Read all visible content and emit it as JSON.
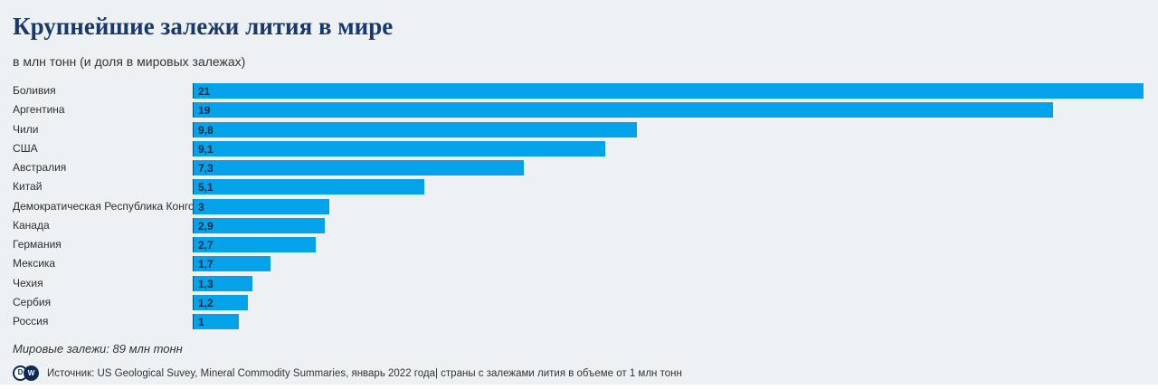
{
  "header": {
    "title": "Крупнейшие залежи лития в мире",
    "subtitle": "в млн тонн (и доля в мировых залежах)"
  },
  "chart_data": {
    "type": "bar",
    "orientation": "horizontal",
    "title": "Крупнейшие залежи лития в мире",
    "subtitle": "в млн тонн (и доля в мировых залежах)",
    "categories": [
      "Боливия",
      "Аргентина",
      "Чили",
      "США",
      "Австралия",
      "Китай",
      "Демократическая Республика Конго",
      "Канада",
      "Германия",
      "Мексика",
      "Чехия",
      "Сербия",
      "Россия"
    ],
    "values": [
      21,
      19,
      9.8,
      9.1,
      7.3,
      5.1,
      3,
      2.9,
      2.7,
      1.7,
      1.3,
      1.2,
      1
    ],
    "value_labels": [
      "21",
      "19",
      "9,8",
      "9,1",
      "7,3",
      "5,1",
      "3",
      "2,9",
      "2,7",
      "1,7",
      "1,3",
      "1,2",
      "1"
    ],
    "xlim": [
      0,
      21
    ],
    "grid": false,
    "legend": false,
    "bar_color": "#05a2ec",
    "note": "Мировые залежи: 89 млн тонн"
  },
  "footer": {
    "note": "Мировые залежи: 89 млн тонн",
    "logo_d": "D",
    "logo_w": "W",
    "source": "Источник: US Geological Suvey, Mineral Commodity Summaries, январь 2022 года| страны с залежами лития в объеме от 1 млн тонн"
  },
  "colors": {
    "background": "#eef1f3",
    "bar": "#05a2ec",
    "title": "#17396b",
    "axis_line": "#3b3e41",
    "bar_value_text": "#132d47",
    "logo_navy": "#0b2b53"
  }
}
